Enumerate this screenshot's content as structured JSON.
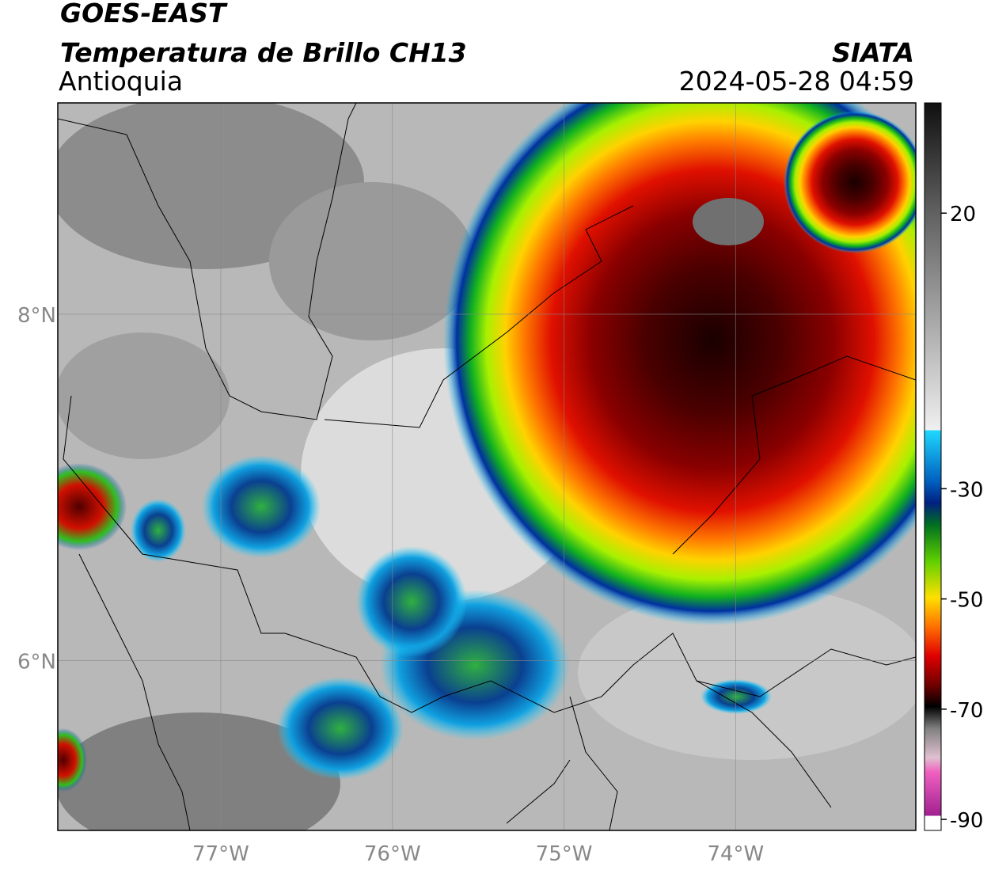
{
  "header": {
    "title": "GOES-EAST",
    "subtitle": "Temperatura de Brillo CH13",
    "region": "Antioquia",
    "source": "SIATA",
    "datetime": "2024-05-28 04:59"
  },
  "map": {
    "lonlim": [
      -77.95,
      -72.95
    ],
    "latlim": [
      5.02,
      9.22
    ],
    "lon_ticks": [
      {
        "value": -77,
        "label": "77°W"
      },
      {
        "value": -76,
        "label": "76°W"
      },
      {
        "value": -75,
        "label": "75°W"
      },
      {
        "value": -74,
        "label": "74°W"
      }
    ],
    "lat_ticks": [
      {
        "value": 8,
        "label": "8°N"
      },
      {
        "value": 6,
        "label": "6°N"
      }
    ]
  },
  "colorbar": {
    "lim": [
      -92,
      40
    ],
    "ticks": [
      20,
      -30,
      -50,
      -70,
      -90
    ]
  }
}
